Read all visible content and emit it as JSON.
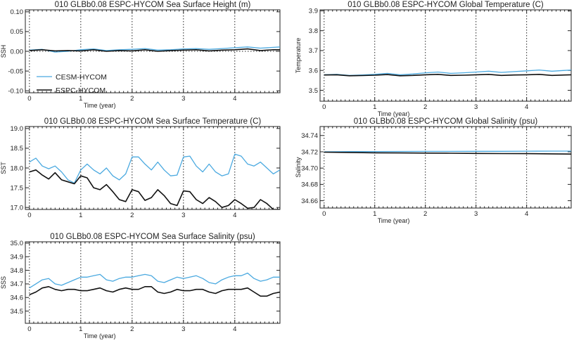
{
  "colors": {
    "cesm": "#4aa9e0",
    "espc": "#111111"
  },
  "chart_data": [
    {
      "id": "ssh",
      "type": "line",
      "title": "010 GLBb0.08 ESPC-HYCOM Sea Surface Height (m)",
      "xlabel": "Time (year)",
      "ylabel": "SSH",
      "xlim": [
        -0.08,
        4.88
      ],
      "ylim": [
        -0.105,
        0.105
      ],
      "xticks": [
        0,
        1,
        2,
        3,
        4
      ],
      "yticks": [
        -0.1,
        -0.05,
        0.0,
        0.05,
        0.1
      ],
      "ytick_labels": [
        "-0.10",
        "-0.05",
        "0.00",
        "0.05",
        "0.10"
      ],
      "zero_line": true,
      "legend": {
        "placement": "lower-left",
        "entries": [
          "CESM-HYCOM",
          "ESPC-HYCOM"
        ]
      },
      "x": [
        0,
        0.25,
        0.5,
        0.75,
        1,
        1.25,
        1.5,
        1.75,
        2,
        2.25,
        2.5,
        2.75,
        3,
        3.25,
        3.5,
        3.75,
        4,
        4.25,
        4.5,
        4.75,
        4.88
      ],
      "series": [
        {
          "name": "CESM-HYCOM",
          "values": [
            0.003,
            0.005,
            -0.002,
            0.0,
            0.004,
            0.006,
            0.002,
            0.004,
            0.005,
            0.007,
            0.003,
            0.004,
            0.006,
            0.007,
            0.005,
            0.007,
            0.009,
            0.011,
            0.008,
            0.01,
            0.011
          ]
        },
        {
          "name": "ESPC-HYCOM",
          "values": [
            0.002,
            0.004,
            0.001,
            0.002,
            0.001,
            0.004,
            0.0,
            0.002,
            0.001,
            0.004,
            0.0,
            0.002,
            0.003,
            0.004,
            0.001,
            0.003,
            0.004,
            0.006,
            0.002,
            0.004,
            0.004
          ]
        }
      ]
    },
    {
      "id": "gtemp",
      "type": "line",
      "title": "010 GLBb0.08 ESPC-HYCOM Global Temperature (C)",
      "xlabel": "Time (year)",
      "ylabel": "Temperature",
      "xlim": [
        -0.08,
        4.88
      ],
      "ylim": [
        3.445,
        3.905
      ],
      "xticks": [
        0,
        1,
        2,
        3,
        4
      ],
      "yticks": [
        3.5,
        3.6,
        3.7,
        3.8,
        3.9
      ],
      "ytick_labels": [
        "3.5",
        "3.6",
        "3.7",
        "3.8",
        "3.9"
      ],
      "x": [
        0,
        0.25,
        0.5,
        0.75,
        1,
        1.25,
        1.5,
        1.75,
        2,
        2.25,
        2.5,
        2.75,
        3,
        3.25,
        3.5,
        3.75,
        4,
        4.25,
        4.5,
        4.75,
        4.88
      ],
      "series": [
        {
          "name": "CESM-HYCOM",
          "values": [
            3.578,
            3.58,
            3.575,
            3.577,
            3.58,
            3.585,
            3.578,
            3.582,
            3.588,
            3.592,
            3.585,
            3.588,
            3.592,
            3.596,
            3.59,
            3.594,
            3.598,
            3.602,
            3.596,
            3.6,
            3.602
          ]
        },
        {
          "name": "ESPC-HYCOM",
          "values": [
            3.577,
            3.578,
            3.573,
            3.574,
            3.576,
            3.579,
            3.573,
            3.575,
            3.578,
            3.58,
            3.575,
            3.576,
            3.578,
            3.58,
            3.575,
            3.577,
            3.578,
            3.58,
            3.575,
            3.577,
            3.578
          ]
        }
      ]
    },
    {
      "id": "sst",
      "type": "line",
      "title": "010 GLBb0.08 ESPC-HYCOM Sea Surface Temperature (C)",
      "xlabel": "",
      "ylabel": "SST",
      "xlim": [
        -0.08,
        4.88
      ],
      "ylim": [
        16.95,
        19.05
      ],
      "xticks": [
        0,
        1,
        2,
        3,
        4
      ],
      "yticks": [
        17.0,
        17.5,
        18.0,
        18.5,
        19.0
      ],
      "ytick_labels": [
        "17.0",
        "17.5",
        "18.0",
        "18.5",
        "19.0"
      ],
      "x": [
        0,
        0.125,
        0.25,
        0.375,
        0.5,
        0.625,
        0.75,
        0.875,
        1,
        1.125,
        1.25,
        1.375,
        1.5,
        1.625,
        1.75,
        1.875,
        2,
        2.125,
        2.25,
        2.375,
        2.5,
        2.625,
        2.75,
        2.875,
        3,
        3.125,
        3.25,
        3.375,
        3.5,
        3.625,
        3.75,
        3.875,
        4,
        4.125,
        4.25,
        4.375,
        4.5,
        4.625,
        4.75,
        4.88
      ],
      "series": [
        {
          "name": "CESM-HYCOM",
          "values": [
            18.15,
            18.25,
            18.05,
            17.98,
            18.05,
            17.9,
            17.7,
            17.62,
            17.95,
            18.1,
            17.95,
            17.85,
            18.0,
            17.8,
            17.7,
            17.85,
            18.28,
            18.28,
            18.1,
            17.95,
            18.15,
            17.95,
            17.8,
            17.82,
            18.28,
            18.3,
            18.05,
            17.9,
            18.1,
            17.9,
            17.8,
            17.85,
            18.35,
            18.3,
            18.1,
            18.05,
            18.15,
            18.0,
            17.85,
            17.95
          ]
        },
        {
          "name": "ESPC-HYCOM",
          "values": [
            17.9,
            17.95,
            17.82,
            17.72,
            17.88,
            17.7,
            17.65,
            17.6,
            17.8,
            17.75,
            17.5,
            17.45,
            17.58,
            17.4,
            17.2,
            17.15,
            17.45,
            17.4,
            17.18,
            17.25,
            17.45,
            17.3,
            17.1,
            17.05,
            17.42,
            17.4,
            17.2,
            17.1,
            17.25,
            17.15,
            17.0,
            17.05,
            17.2,
            17.1,
            16.98,
            17.0,
            17.2,
            17.1,
            16.95,
            16.95
          ]
        }
      ]
    },
    {
      "id": "gsal",
      "type": "line",
      "title": "010 GLBb0.08 ESPC-HYCOM Global Salinity (psu)",
      "xlabel": "Time (year)",
      "ylabel": "Salinity",
      "xlim": [
        -0.08,
        4.88
      ],
      "ylim": [
        34.651,
        34.751
      ],
      "xticks": [
        0,
        1,
        2,
        3,
        4
      ],
      "yticks": [
        34.66,
        34.68,
        34.7,
        34.72,
        34.74
      ],
      "ytick_labels": [
        "34.66",
        "34.68",
        "34.70",
        "34.72",
        "34.74"
      ],
      "x": [
        0,
        0.5,
        1,
        1.5,
        2,
        2.5,
        3,
        3.5,
        4,
        4.5,
        4.88
      ],
      "series": [
        {
          "name": "CESM-HYCOM",
          "values": [
            34.72,
            34.7202,
            34.7203,
            34.7204,
            34.7205,
            34.7205,
            34.7206,
            34.7206,
            34.7207,
            34.7208,
            34.7208
          ]
        },
        {
          "name": "ESPC-HYCOM",
          "values": [
            34.7195,
            34.7192,
            34.7188,
            34.7186,
            34.7184,
            34.7182,
            34.718,
            34.7178,
            34.7177,
            34.7175,
            34.7172
          ]
        }
      ]
    },
    {
      "id": "sss",
      "type": "line",
      "title": "010 GLBb0.08 ESPC-HYCOM Sea Surface Salinity (psu)",
      "xlabel": "Time (year)",
      "ylabel": "SSS",
      "xlim": [
        -0.08,
        4.88
      ],
      "ylim": [
        34.41,
        35.01
      ],
      "xticks": [
        0,
        1,
        2,
        3,
        4
      ],
      "yticks": [
        34.5,
        34.6,
        34.7,
        34.8,
        34.9,
        35.0
      ],
      "ytick_labels": [
        "34.5",
        "34.6",
        "34.7",
        "34.8",
        "34.9",
        "35.0"
      ],
      "x": [
        0,
        0.125,
        0.25,
        0.375,
        0.5,
        0.625,
        0.75,
        0.875,
        1,
        1.125,
        1.25,
        1.375,
        1.5,
        1.625,
        1.75,
        1.875,
        2,
        2.125,
        2.25,
        2.375,
        2.5,
        2.625,
        2.75,
        2.875,
        3,
        3.125,
        3.25,
        3.375,
        3.5,
        3.625,
        3.75,
        3.875,
        4,
        4.125,
        4.25,
        4.375,
        4.5,
        4.625,
        4.75,
        4.88
      ],
      "series": [
        {
          "name": "CESM-HYCOM",
          "values": [
            34.67,
            34.7,
            34.73,
            34.74,
            34.7,
            34.69,
            34.71,
            34.73,
            34.75,
            34.75,
            34.76,
            34.77,
            34.73,
            34.72,
            34.74,
            34.75,
            34.75,
            34.76,
            34.77,
            34.76,
            34.72,
            34.71,
            34.73,
            34.75,
            34.74,
            34.75,
            34.76,
            34.74,
            34.71,
            34.7,
            34.73,
            34.75,
            34.76,
            34.76,
            34.78,
            34.74,
            34.72,
            34.73,
            34.75,
            34.75
          ]
        },
        {
          "name": "ESPC-HYCOM",
          "values": [
            34.62,
            34.64,
            34.67,
            34.68,
            34.66,
            34.65,
            34.66,
            34.66,
            34.65,
            34.65,
            34.66,
            34.67,
            34.65,
            34.64,
            34.66,
            34.67,
            34.66,
            34.66,
            34.68,
            34.68,
            34.64,
            34.63,
            34.64,
            34.66,
            34.65,
            34.65,
            34.66,
            34.66,
            34.64,
            34.63,
            34.65,
            34.66,
            34.66,
            34.66,
            34.67,
            34.64,
            34.61,
            34.61,
            34.63,
            34.64
          ]
        }
      ]
    }
  ]
}
